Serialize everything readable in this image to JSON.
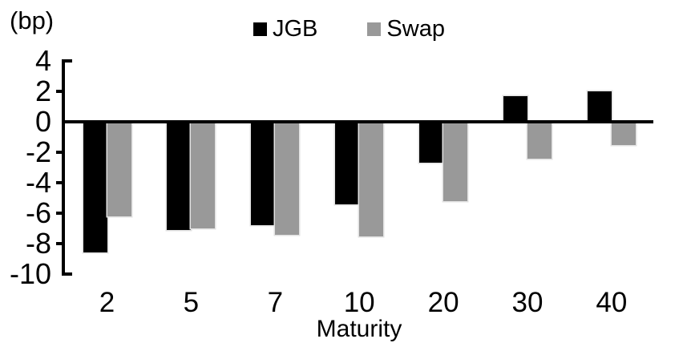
{
  "chart_data": {
    "type": "bar",
    "categories": [
      "2",
      "5",
      "7",
      "10",
      "20",
      "30",
      "40"
    ],
    "series": [
      {
        "name": "JGB",
        "color": "#000000",
        "values": [
          -8.6,
          -7.1,
          -6.8,
          -5.4,
          -2.7,
          1.7,
          2.0
        ]
      },
      {
        "name": "Swap",
        "color": "#999999",
        "values": [
          -6.2,
          -7.0,
          -7.4,
          -7.5,
          -5.2,
          -2.4,
          -1.5
        ]
      }
    ],
    "title": "",
    "xlabel": "Maturity",
    "ylabel_unit": "(bp)",
    "ylim": [
      -10,
      4
    ],
    "yticks": [
      4,
      2,
      0,
      -2,
      -4,
      -6,
      -8,
      -10
    ],
    "legend_position": "top",
    "grid": false,
    "axis_color": "#000000",
    "background_color": "#ffffff"
  }
}
